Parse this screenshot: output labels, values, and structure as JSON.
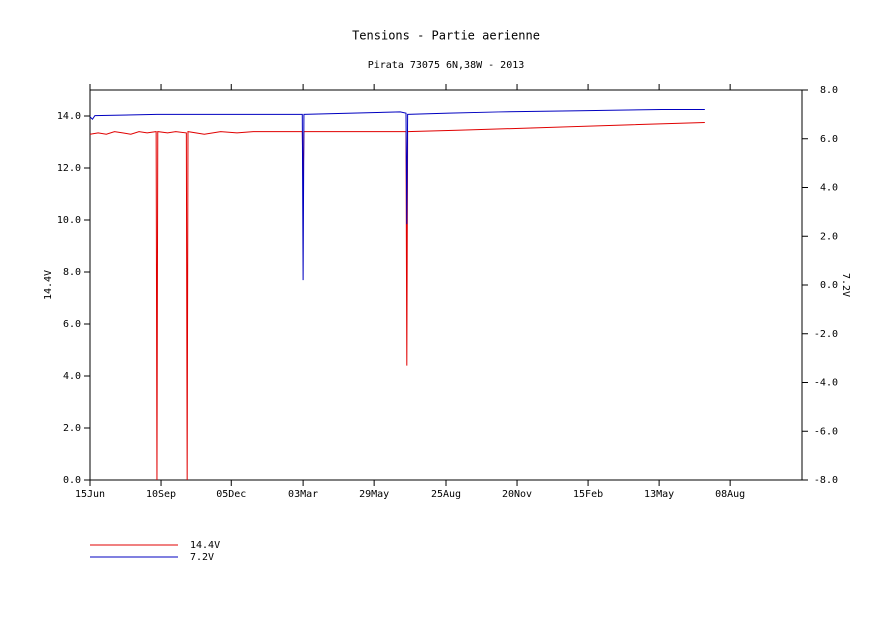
{
  "chart_data": {
    "type": "line",
    "title": "Tensions - Partie aerienne",
    "subtitle": "Pirata 73075 6N,38W - 2013",
    "y_label": "14.4V",
    "y2_label": "7.2V",
    "xlim": [
      0,
      872
    ],
    "xticks": [
      {
        "value": 0,
        "label": "15Jun"
      },
      {
        "value": 87,
        "label": "10Sep"
      },
      {
        "value": 173,
        "label": "05Dec"
      },
      {
        "value": 261,
        "label": "03Mar"
      },
      {
        "value": 348,
        "label": "29May"
      },
      {
        "value": 436,
        "label": "25Aug"
      },
      {
        "value": 523,
        "label": "20Nov"
      },
      {
        "value": 610,
        "label": "15Feb"
      },
      {
        "value": 697,
        "label": "13May"
      },
      {
        "value": 784,
        "label": "08Aug"
      }
    ],
    "ylim": [
      0,
      15
    ],
    "yticks": [
      {
        "value": 0,
        "label": "0.0"
      },
      {
        "value": 2,
        "label": "2.0"
      },
      {
        "value": 4,
        "label": "4.0"
      },
      {
        "value": 6,
        "label": "6.0"
      },
      {
        "value": 8,
        "label": "8.0"
      },
      {
        "value": 10,
        "label": "10.0"
      },
      {
        "value": 12,
        "label": "12.0"
      },
      {
        "value": 14,
        "label": "14.0"
      }
    ],
    "y2lim": [
      -8,
      8
    ],
    "y2ticks": [
      {
        "value": -8,
        "label": "-8.0"
      },
      {
        "value": -6,
        "label": "-6.0"
      },
      {
        "value": -4,
        "label": "-4.0"
      },
      {
        "value": -2,
        "label": "-2.0"
      },
      {
        "value": 0,
        "label": "0.0"
      },
      {
        "value": 2,
        "label": "2.0"
      },
      {
        "value": 4,
        "label": "4.0"
      },
      {
        "value": 6,
        "label": "6.0"
      },
      {
        "value": 8,
        "label": "8.0"
      }
    ],
    "legend": "bottom-left",
    "series": [
      {
        "name": "14.4V",
        "color": "#e00000",
        "axis": "y",
        "x": [
          0,
          10,
          20,
          30,
          40,
          50,
          60,
          70,
          81,
          82,
          83,
          95,
          105,
          118,
          119,
          120,
          140,
          160,
          180,
          200,
          230,
          260,
          261,
          262,
          300,
          387,
          388,
          389,
          450,
          550,
          650,
          753
        ],
        "values": [
          13.3,
          13.35,
          13.3,
          13.4,
          13.35,
          13.3,
          13.4,
          13.35,
          13.4,
          0,
          13.4,
          13.35,
          13.4,
          13.35,
          0,
          13.4,
          13.3,
          13.4,
          13.35,
          13.4,
          13.4,
          13.4,
          11.2,
          13.4,
          13.4,
          13.4,
          4.4,
          13.4,
          13.45,
          13.55,
          13.65,
          13.75
        ]
      },
      {
        "name": "7.2V",
        "color": "#0000c0",
        "axis": "y2",
        "x": [
          0,
          3,
          6,
          82,
          119,
          200,
          260,
          261,
          262,
          380,
          387,
          388,
          389,
          440,
          500,
          600,
          700,
          753
        ],
        "values": [
          6.9,
          6.8,
          6.95,
          7.0,
          7.0,
          7.0,
          7.0,
          0.2,
          7.0,
          7.1,
          7.05,
          2.5,
          7.0,
          7.05,
          7.1,
          7.15,
          7.2,
          7.2
        ]
      }
    ]
  }
}
